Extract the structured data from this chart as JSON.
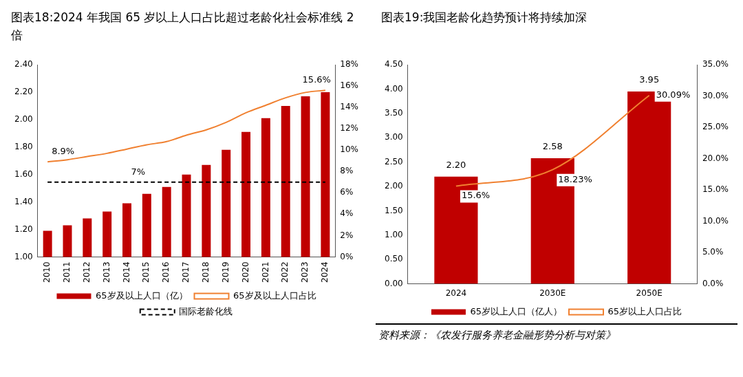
{
  "chart_data": [
    {
      "type": "bar",
      "title": "图表18:2024 年我国 65 岁以上人口占比超过老龄化社会标准线 2 倍",
      "categories": [
        "2010",
        "2011",
        "2012",
        "2013",
        "2014",
        "2015",
        "2016",
        "2017",
        "2018",
        "2019",
        "2020",
        "2021",
        "2022",
        "2023",
        "2024"
      ],
      "series": [
        {
          "name": "65岁及以上人口（亿）",
          "color": "#c00000",
          "values": [
            1.19,
            1.23,
            1.28,
            1.33,
            1.39,
            1.46,
            1.51,
            1.6,
            1.67,
            1.78,
            1.91,
            2.01,
            2.1,
            2.17,
            2.2
          ]
        },
        {
          "name": "65岁及以上人口占比",
          "type": "line",
          "axis": "y2",
          "color": "#f08030",
          "values": [
            8.9,
            9.1,
            9.4,
            9.7,
            10.1,
            10.5,
            10.8,
            11.4,
            11.9,
            12.6,
            13.5,
            14.2,
            14.9,
            15.4,
            15.6
          ],
          "value_labels": [
            "8.9%",
            null,
            null,
            null,
            null,
            null,
            null,
            null,
            null,
            null,
            null,
            null,
            null,
            null,
            "15.6%"
          ]
        },
        {
          "name": "国际老龄化线",
          "type": "line",
          "axis": "y2",
          "color": "#000000",
          "line_style": "dashed",
          "values": [
            7,
            7,
            7,
            7,
            7,
            7,
            7,
            7,
            7,
            7,
            7,
            7,
            7,
            7,
            7
          ],
          "value_labels": [
            null,
            null,
            null,
            null,
            "7%",
            null,
            null,
            null,
            null,
            null,
            null,
            null,
            null,
            null,
            null
          ]
        }
      ],
      "ylim": [
        1,
        2.4
      ],
      "yticks": [
        {
          "value": 1,
          "label": "1.00"
        },
        {
          "value": 1.2,
          "label": "1.20"
        },
        {
          "value": 1.4,
          "label": "1.40"
        },
        {
          "value": 1.6,
          "label": "1.60"
        },
        {
          "value": 1.8,
          "label": "1.80"
        },
        {
          "value": 2,
          "label": "2.00"
        },
        {
          "value": 2.2,
          "label": "2.20"
        },
        {
          "value": 2.4,
          "label": "2.40"
        }
      ],
      "y2lim": [
        0,
        18
      ],
      "y2ticks": [
        {
          "value": 0,
          "label": "0%"
        },
        {
          "value": 2,
          "label": "2%"
        },
        {
          "value": 4,
          "label": "4%"
        },
        {
          "value": 6,
          "label": "6%"
        },
        {
          "value": 8,
          "label": "8%"
        },
        {
          "value": 10,
          "label": "10%"
        },
        {
          "value": 12,
          "label": "12%"
        },
        {
          "value": 14,
          "label": "14%"
        },
        {
          "value": 16,
          "label": "16%"
        },
        {
          "value": 18,
          "label": "18%"
        }
      ],
      "marker": "none",
      "legend": "bottom"
    },
    {
      "type": "bar",
      "title": "图表19:我国老龄化趋势预计将持续加深",
      "categories": [
        "2024",
        "2030E",
        "2050E"
      ],
      "series": [
        {
          "name": "65岁以上人口（亿人）",
          "color": "#c00000",
          "values": [
            2.2,
            2.58,
            3.95
          ],
          "value_labels": [
            "2.20",
            "2.58",
            "3.95"
          ]
        },
        {
          "name": "65岁以上人口占比",
          "type": "line",
          "axis": "y2",
          "color": "#f08030",
          "values": [
            15.6,
            18.23,
            30.09
          ],
          "value_labels": [
            "15.6%",
            "18.23%",
            "30.09%"
          ]
        }
      ],
      "ylim": [
        0,
        4.5
      ],
      "yticks": [
        {
          "value": 0,
          "label": "0.00"
        },
        {
          "value": 0.5,
          "label": "0.50"
        },
        {
          "value": 1,
          "label": "1.00"
        },
        {
          "value": 1.5,
          "label": "1.50"
        },
        {
          "value": 2,
          "label": "2.00"
        },
        {
          "value": 2.5,
          "label": "2.50"
        },
        {
          "value": 3,
          "label": "3.00"
        },
        {
          "value": 3.5,
          "label": "3.50"
        },
        {
          "value": 4,
          "label": "4.00"
        },
        {
          "value": 4.5,
          "label": "4.50"
        }
      ],
      "y2lim": [
        0,
        35
      ],
      "y2ticks": [
        {
          "value": 0,
          "label": "0.0%"
        },
        {
          "value": 5,
          "label": "5.0%"
        },
        {
          "value": 10,
          "label": "10.0%"
        },
        {
          "value": 15,
          "label": "15.0%"
        },
        {
          "value": 20,
          "label": "20.0%"
        },
        {
          "value": 25,
          "label": "25.0%"
        },
        {
          "value": 30,
          "label": "30.0%"
        },
        {
          "value": 35,
          "label": "35.0%"
        }
      ],
      "marker": "none",
      "legend": "bottom",
      "annotations": [
        "资料来源：《农发行服务养老金融形势分析与对策》"
      ]
    }
  ]
}
